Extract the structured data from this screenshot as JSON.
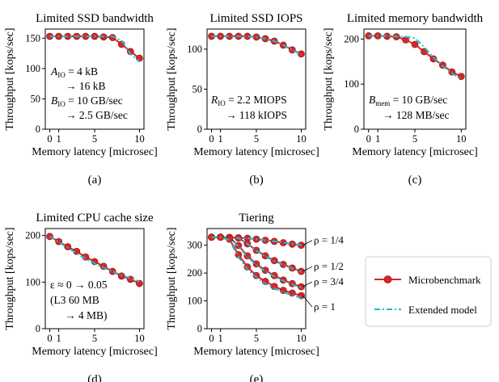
{
  "figure": {
    "x_axis_label": "Memory latency [microsec]",
    "y_axis_label": "Throughput [kops/sec]",
    "legend": {
      "placement": "right of panel (e)",
      "entries": [
        {
          "label": "Microbenchmark",
          "style": "red line with circle markers",
          "color": "#d62728"
        },
        {
          "label": "Extended model",
          "style": "cyan dash-dot line",
          "color": "#17becf"
        }
      ]
    }
  },
  "chart_data": [
    {
      "panel": "a",
      "type": "line",
      "title": "Limited SSD bandwidth",
      "caption": "(a)",
      "xlabel": "Memory latency [microsec]",
      "ylabel": "Throughput [kops/sec]",
      "xlim": [
        -0.5,
        10.5
      ],
      "ylim": [
        0,
        165
      ],
      "xticks": [
        0,
        1,
        5,
        10
      ],
      "yticks": [
        0,
        50,
        100,
        150
      ],
      "annotation": [
        "A_IO = 4 kB",
        "→ 16 kB",
        "B_IO = 10 GB/sec",
        "→ 2.5 GB/sec"
      ],
      "series": [
        {
          "name": "Microbenchmark",
          "x": [
            0,
            1,
            2,
            3,
            4,
            5,
            6,
            7,
            8,
            9,
            10
          ],
          "values": [
            153,
            153,
            153,
            153,
            153,
            153,
            152,
            151,
            140,
            128,
            117
          ]
        },
        {
          "name": "Extended model",
          "x": [
            0,
            1,
            2,
            3,
            4,
            5,
            6,
            7,
            8,
            9,
            10
          ],
          "values": [
            153,
            153,
            153,
            153,
            153,
            153,
            153,
            153,
            146,
            124,
            111
          ]
        }
      ]
    },
    {
      "panel": "b",
      "type": "line",
      "title": "Limited SSD IOPS",
      "caption": "(b)",
      "xlabel": "Memory latency [microsec]",
      "ylabel": "Throughput [kops/sec]",
      "xlim": [
        -0.5,
        10.5
      ],
      "ylim": [
        0,
        125
      ],
      "xticks": [
        0,
        1,
        5,
        10
      ],
      "yticks": [
        0,
        50,
        100
      ],
      "annotation": [
        "R_IO = 2.2 MIOPS",
        "→ 118 kIOPS"
      ],
      "series": [
        {
          "name": "Microbenchmark",
          "x": [
            0,
            1,
            2,
            3,
            4,
            5,
            6,
            7,
            8,
            9,
            10
          ],
          "values": [
            116,
            116,
            116,
            116,
            116,
            115,
            113,
            110,
            105,
            99,
            94
          ]
        },
        {
          "name": "Extended model",
          "x": [
            0,
            1,
            2,
            3,
            4,
            5,
            6,
            7,
            8,
            9,
            10
          ],
          "values": [
            116,
            116,
            116,
            116,
            116,
            115,
            113,
            110,
            105,
            99,
            93
          ]
        }
      ]
    },
    {
      "panel": "c",
      "type": "line",
      "title": "Limited memory bandwidth",
      "caption": "(c)",
      "xlabel": "Memory latency [microsec]",
      "ylabel": "Throughput [kops/sec]",
      "xlim": [
        -0.5,
        10.5
      ],
      "ylim": [
        0,
        222
      ],
      "xticks": [
        0,
        1,
        5,
        10
      ],
      "yticks": [
        0,
        100,
        200
      ],
      "annotation": [
        "B_mem = 10 GB/sec",
        "→ 128 MB/sec"
      ],
      "series": [
        {
          "name": "Microbenchmark",
          "x": [
            0,
            1,
            2,
            3,
            4,
            5,
            6,
            7,
            8,
            9,
            10
          ],
          "values": [
            207,
            207,
            206,
            205,
            198,
            188,
            172,
            156,
            142,
            127,
            117
          ]
        },
        {
          "name": "Extended model",
          "x": [
            0,
            1,
            2,
            3,
            4,
            5,
            6,
            7,
            8,
            9,
            10
          ],
          "values": [
            207,
            207,
            207,
            206,
            205,
            202,
            182,
            159,
            140,
            124,
            111
          ]
        }
      ]
    },
    {
      "panel": "d",
      "type": "line",
      "title": "Limited CPU cache size",
      "caption": "(d)",
      "xlabel": "Memory latency [microsec]",
      "ylabel": "Throughput [kops/sec]",
      "xlim": [
        -0.5,
        10.5
      ],
      "ylim": [
        0,
        215
      ],
      "xticks": [
        0,
        1,
        5,
        10
      ],
      "yticks": [
        0,
        100,
        200
      ],
      "annotation": [
        "ε ≈ 0 → 0.05",
        "(L3 60 MB",
        "→ 4 MB)"
      ],
      "series": [
        {
          "name": "Microbenchmark",
          "x": [
            0,
            1,
            2,
            3,
            4,
            5,
            6,
            7,
            8,
            9,
            10
          ],
          "values": [
            198,
            187,
            176,
            166,
            154,
            144,
            134,
            123,
            113,
            106,
            97
          ]
        },
        {
          "name": "Extended model",
          "x": [
            0,
            1,
            2,
            3,
            4,
            5,
            6,
            7,
            8,
            9,
            10
          ],
          "values": [
            198,
            186,
            174,
            162,
            150,
            140,
            131,
            123,
            115,
            108,
            101
          ]
        }
      ]
    },
    {
      "panel": "e",
      "type": "line",
      "title": "Tiering",
      "caption": "(e)",
      "xlabel": "Memory latency [microsec]",
      "ylabel": "Throughput [kops/sec]",
      "xlim": [
        -0.5,
        10.5
      ],
      "ylim": [
        0,
        360
      ],
      "xticks": [
        0,
        1,
        5,
        10
      ],
      "yticks": [
        0,
        100,
        200,
        300
      ],
      "series": [
        {
          "name": "ρ = 1/4",
          "x": [
            0,
            1,
            2,
            3,
            4,
            5,
            6,
            7,
            8,
            9,
            10
          ],
          "values": [
            329,
            329,
            328,
            327,
            325,
            322,
            318,
            314,
            309,
            304,
            300
          ],
          "model": [
            329,
            329,
            328,
            327,
            325,
            322,
            318,
            314,
            310,
            305,
            301
          ]
        },
        {
          "name": "ρ = 1/2",
          "x": [
            0,
            1,
            2,
            3,
            4,
            5,
            6,
            7,
            8,
            9,
            10
          ],
          "values": [
            329,
            329,
            328,
            326,
            305,
            282,
            262,
            245,
            231,
            218,
            206
          ],
          "model": [
            329,
            329,
            328,
            326,
            305,
            280,
            260,
            243,
            229,
            216,
            205
          ]
        },
        {
          "name": "ρ = 3/4",
          "x": [
            0,
            1,
            2,
            3,
            4,
            5,
            6,
            7,
            8,
            9,
            10
          ],
          "values": [
            329,
            329,
            328,
            299,
            262,
            233,
            210,
            191,
            175,
            162,
            151
          ],
          "model": [
            329,
            329,
            328,
            296,
            258,
            229,
            206,
            187,
            172,
            159,
            148
          ]
        },
        {
          "name": "ρ = 1",
          "x": [
            0,
            1,
            2,
            3,
            4,
            5,
            6,
            7,
            8,
            9,
            10
          ],
          "values": [
            329,
            329,
            322,
            266,
            222,
            191,
            170,
            152,
            138,
            128,
            119
          ],
          "model": [
            329,
            329,
            318,
            258,
            214,
            184,
            162,
            145,
            131,
            120,
            111
          ]
        }
      ]
    }
  ]
}
